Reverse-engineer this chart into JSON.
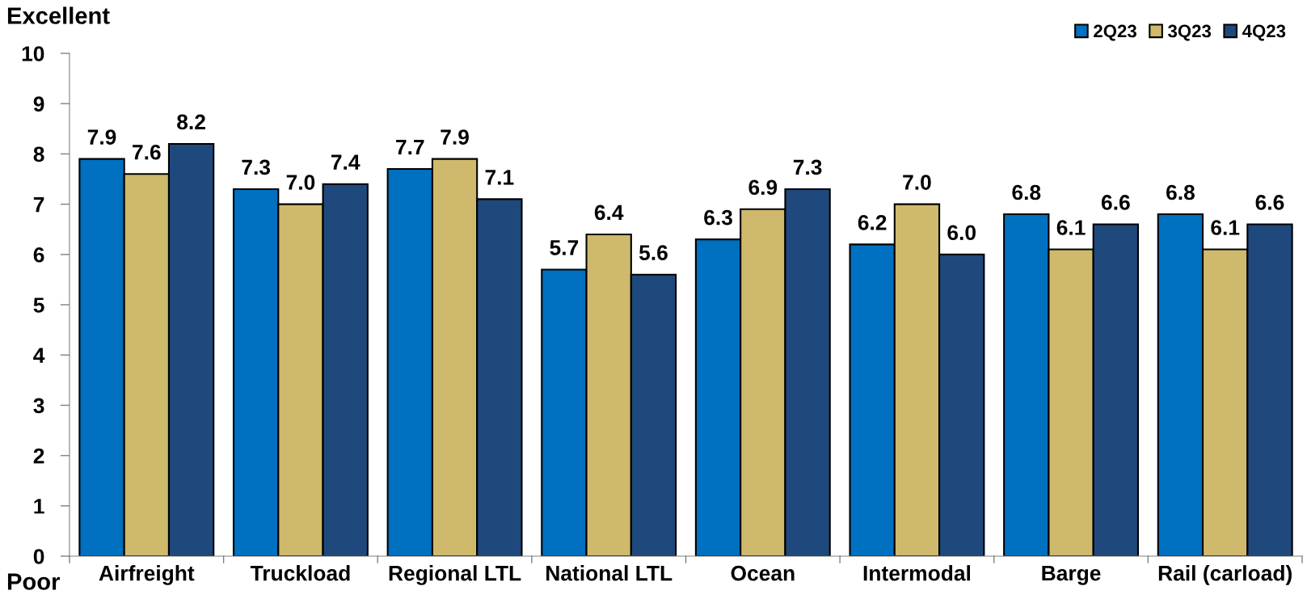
{
  "chart_data": {
    "type": "bar",
    "categories": [
      "Airfreight",
      "Truckload",
      "Regional LTL",
      "National LTL",
      "Ocean",
      "Intermodal",
      "Barge",
      "Rail (carload)"
    ],
    "series": [
      {
        "name": "2Q23",
        "color": "#0070c0",
        "values": [
          7.9,
          7.3,
          7.7,
          5.7,
          6.3,
          6.2,
          6.8,
          6.8
        ],
        "value_labels": [
          "7.9",
          "7.3",
          "7.7",
          "5.7",
          "6.3",
          "6.2",
          "6.8",
          "6.8"
        ]
      },
      {
        "name": "3Q23",
        "color": "#cfb96c",
        "values": [
          7.6,
          7.0,
          7.9,
          6.4,
          6.9,
          7.0,
          6.1,
          6.1
        ],
        "value_labels": [
          "7.6",
          "7.0",
          "7.9",
          "6.4",
          "6.9",
          "7.0",
          "6.1",
          "6.1"
        ]
      },
      {
        "name": "4Q23",
        "color": "#1f497d",
        "values": [
          8.2,
          7.4,
          7.1,
          5.6,
          7.3,
          6.0,
          6.6,
          6.6
        ],
        "value_labels": [
          "8.2",
          "7.4",
          "7.1",
          "5.6",
          "7.3",
          "6.0",
          "6.6",
          "6.6"
        ]
      }
    ],
    "ylim": [
      0,
      10
    ],
    "yticks": [
      0,
      1,
      2,
      3,
      4,
      5,
      6,
      7,
      8,
      9,
      10
    ],
    "annotations": [
      "Excellent",
      "Poor"
    ],
    "grid": false,
    "legend": "top right"
  }
}
